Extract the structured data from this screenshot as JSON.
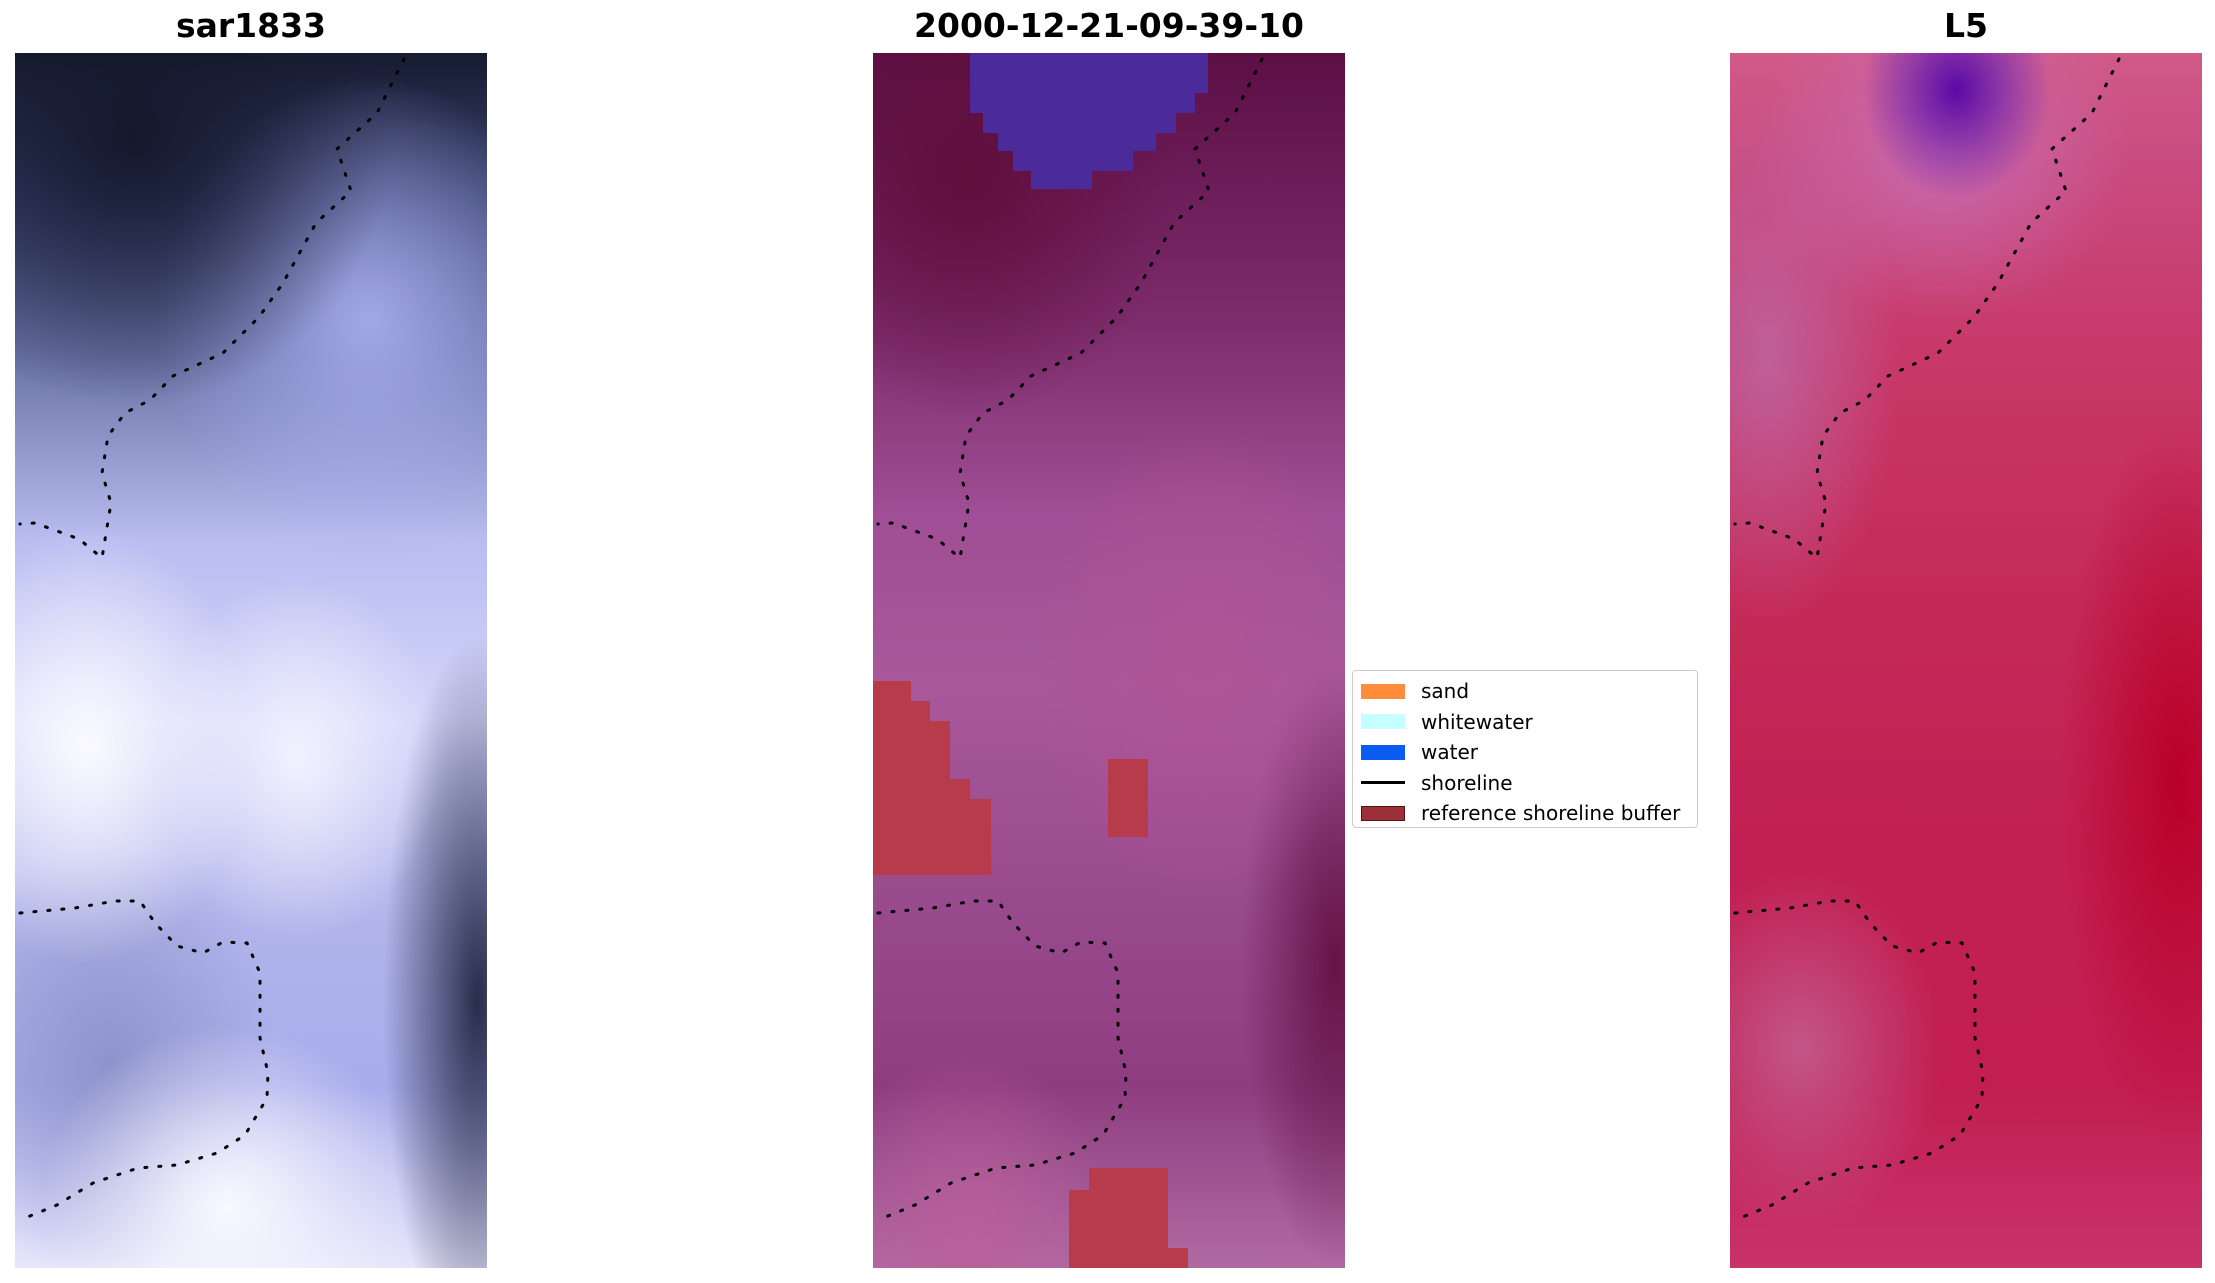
{
  "panels": [
    {
      "id": "sar",
      "title": "sar1833"
    },
    {
      "id": "date",
      "title": "2000-12-21-09-39-10"
    },
    {
      "id": "sensor",
      "title": "L5"
    }
  ],
  "legend": {
    "items": [
      {
        "label": "sand",
        "color": "#ff8c3a",
        "kind": "patch"
      },
      {
        "label": "whitewater",
        "color": "#c6ffff",
        "kind": "patch"
      },
      {
        "label": "water",
        "color": "#0a5cf0",
        "kind": "patch"
      },
      {
        "label": "shoreline",
        "color": "#000000",
        "kind": "line"
      },
      {
        "label": "reference shoreline buffer",
        "color": "#9a3038",
        "kind": "patch"
      }
    ]
  },
  "colors": {
    "sar_dark": "#141a2e",
    "sar_light": "#eeeefe",
    "class_background": "#8e3d7c",
    "class_purple": "#4b2b9a",
    "class_buffer": "#b83b4c",
    "l5_base": "#c22052",
    "l5_purple": "#5a0aa6"
  }
}
